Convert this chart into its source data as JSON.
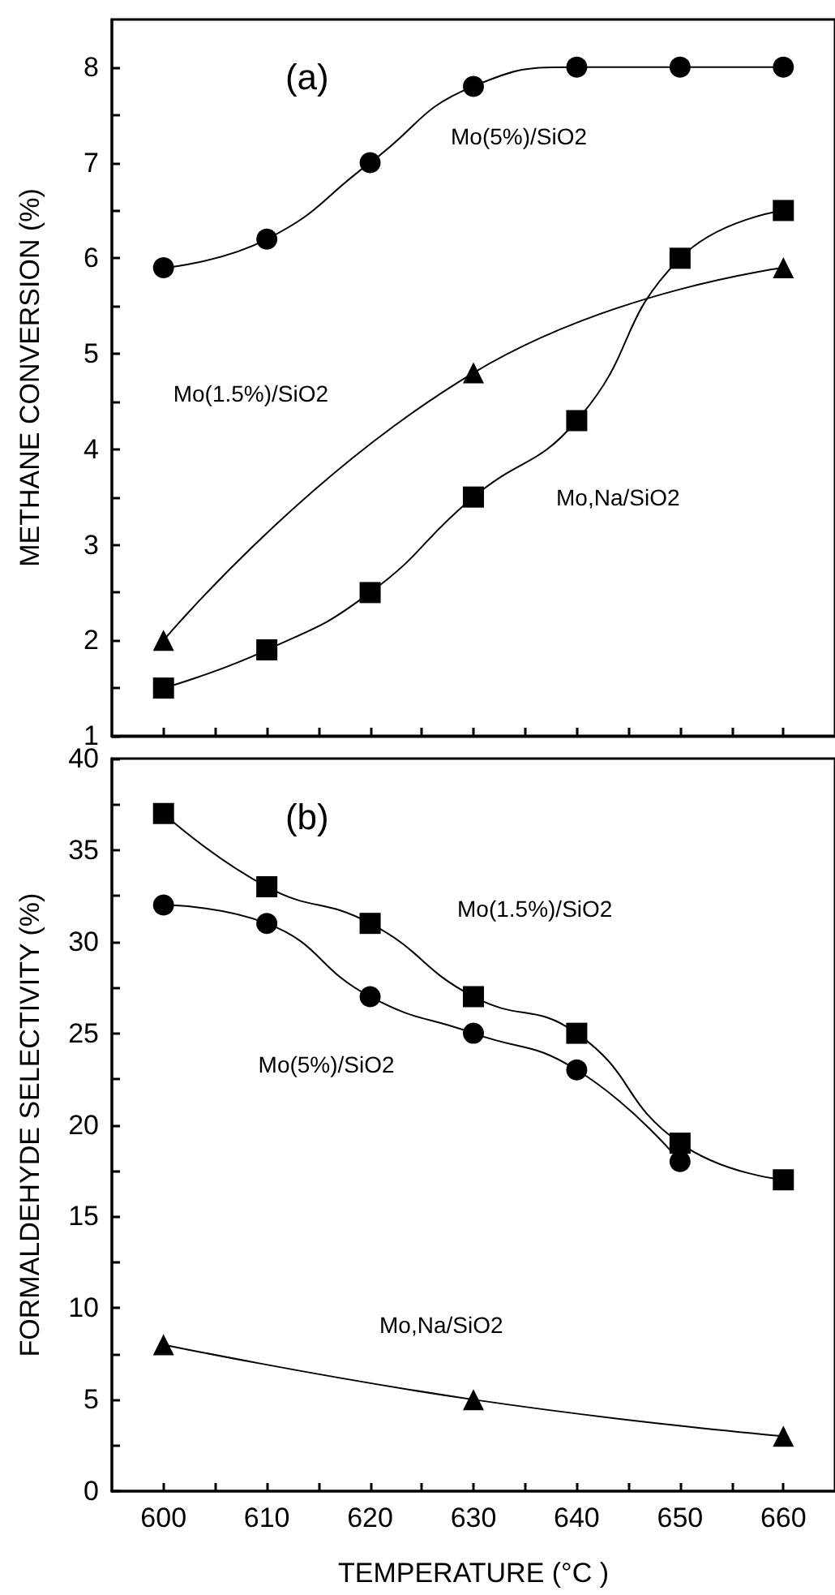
{
  "chart_data": [
    {
      "type": "line",
      "title": "(a)",
      "ylabel": "METHANE CONVERSION (%)",
      "xlim": [
        595,
        665
      ],
      "ylim": [
        1,
        8.5
      ],
      "xticks": [
        600,
        {
          "value": 605,
          "label": null
        },
        610,
        {
          "value": 615,
          "label": null
        },
        620,
        {
          "value": 625,
          "label": null
        },
        630,
        {
          "value": 635,
          "label": null
        },
        640,
        {
          "value": 645,
          "label": null
        },
        650,
        {
          "value": 655,
          "label": null
        },
        660
      ],
      "yticks": [
        1,
        {
          "value": 1.5,
          "label": null
        },
        2,
        {
          "value": 2.5,
          "label": null
        },
        3,
        {
          "value": 3.5,
          "label": null
        },
        4,
        {
          "value": 4.5,
          "label": null
        },
        5,
        {
          "value": 5.5,
          "label": null
        },
        6,
        {
          "value": 6.5,
          "label": null
        },
        7,
        {
          "value": 7.5,
          "label": null
        },
        8
      ],
      "tick_labels": "y",
      "grid": false,
      "line_style": "solid",
      "series": [
        {
          "name": "Mo(5%)/SiO2",
          "color": "#000000",
          "marker": "circle",
          "x": [
            600,
            610,
            620,
            630,
            640,
            650,
            660
          ],
          "values": [
            5.9,
            6.2,
            7.0,
            7.8,
            8.0,
            8.0,
            8.0
          ]
        },
        {
          "name": "Mo,Na/SiO2",
          "color": "#000000",
          "marker": "square",
          "x": [
            600,
            610,
            620,
            630,
            640,
            650,
            660
          ],
          "values": [
            1.5,
            1.9,
            2.5,
            3.5,
            4.3,
            6.0,
            6.5
          ]
        },
        {
          "name": "Mo(1.5%)/SiO2",
          "color": "#000000",
          "marker": "triangle",
          "x": [
            600,
            630,
            660
          ],
          "values": [
            2.0,
            4.8,
            5.9
          ]
        }
      ]
    },
    {
      "type": "line",
      "title": "(b)",
      "xlabel": "TEMPERATURE (°C )",
      "ylabel": "FORMALDEHYDE SELECTIVITY (%)",
      "xlim": [
        595,
        665
      ],
      "ylim": [
        0,
        40
      ],
      "xticks": [
        600,
        {
          "value": 605,
          "label": null
        },
        610,
        {
          "value": 615,
          "label": null
        },
        620,
        {
          "value": 625,
          "label": null
        },
        630,
        {
          "value": 635,
          "label": null
        },
        640,
        {
          "value": 645,
          "label": null
        },
        650,
        {
          "value": 655,
          "label": null
        },
        660
      ],
      "yticks": [
        0,
        {
          "value": 2.5,
          "label": null
        },
        5,
        {
          "value": 7.5,
          "label": null
        },
        10,
        {
          "value": 12.5,
          "label": null
        },
        15,
        {
          "value": 17.5,
          "label": null
        },
        20,
        {
          "value": 22.5,
          "label": null
        },
        25,
        {
          "value": 27.5,
          "label": null
        },
        30,
        {
          "value": 32.5,
          "label": null
        },
        35,
        {
          "value": 37.5,
          "label": null
        },
        40
      ],
      "grid": false,
      "line_style": "solid",
      "series": [
        {
          "name": "Mo(1.5%)/SiO2",
          "color": "#000000",
          "marker": "square",
          "x": [
            600,
            610,
            620,
            630,
            640,
            650,
            660
          ],
          "values": [
            37,
            33,
            31,
            27,
            25,
            19,
            17
          ]
        },
        {
          "name": "Mo(5%)/SiO2",
          "color": "#000000",
          "marker": "circle",
          "x": [
            600,
            610,
            620,
            630,
            640,
            650
          ],
          "values": [
            32,
            31,
            27,
            25,
            23,
            18
          ]
        },
        {
          "name": "Mo,Na/SiO2",
          "color": "#000000",
          "marker": "triangle",
          "x": [
            600,
            630,
            660
          ],
          "values": [
            8,
            5,
            3
          ]
        }
      ]
    }
  ]
}
